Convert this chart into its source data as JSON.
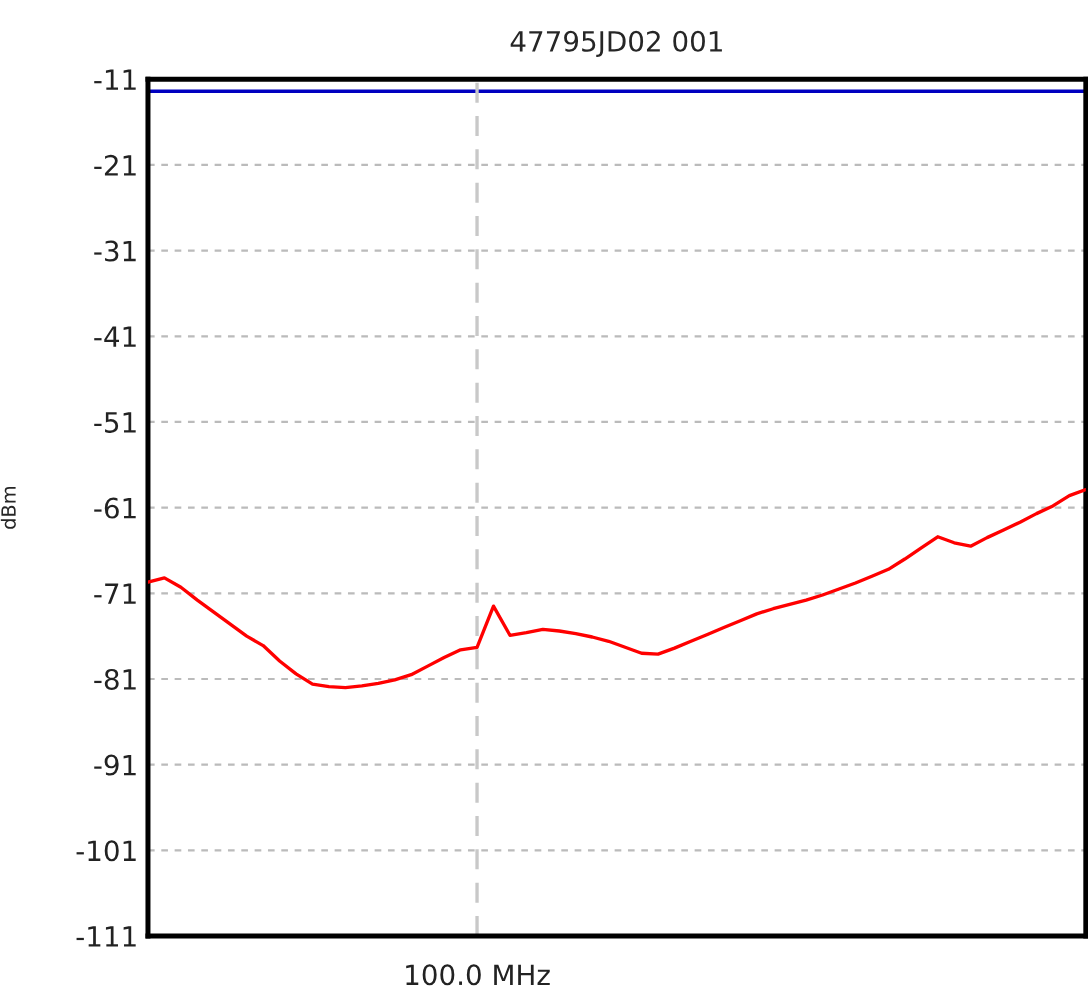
{
  "chart_data": {
    "type": "line",
    "title": "47795JD02 001",
    "ylabel": "dBm",
    "categories": [
      null,
      null,
      null,
      null,
      null,
      null,
      null,
      null,
      null,
      null,
      null,
      null,
      null,
      null,
      null,
      null,
      null,
      null,
      null,
      null,
      "100.0 MHz",
      null,
      null,
      null,
      null,
      null,
      null,
      null,
      null,
      null,
      null,
      null,
      null,
      null,
      null,
      null,
      null,
      null,
      null,
      null,
      null,
      null,
      null,
      null,
      null,
      null,
      null,
      null,
      null,
      null,
      null,
      null,
      null,
      null,
      null,
      null,
      null,
      null
    ],
    "ylim": [
      -111,
      -11
    ],
    "yticks": [
      -111,
      -101,
      -91,
      -81,
      -71,
      -61,
      -51,
      -41,
      -31,
      -21,
      -11
    ],
    "grid": "y",
    "marker": "none",
    "line_style": "solid",
    "ref_lines": [
      {
        "axis": "y",
        "value": -12.4,
        "color": "#0000c0",
        "line_style": "solid"
      },
      {
        "axis": "x",
        "value": "100.0 MHz",
        "color": "#c8c8c8",
        "line_style": "dashed"
      }
    ],
    "series": [
      {
        "color": "#ff0000",
        "values": [
          -69.7,
          -69.2,
          -70.3,
          -71.8,
          -73.2,
          -74.6,
          -76.0,
          -77.1,
          -78.9,
          -80.4,
          -81.6,
          -81.9,
          -82.0,
          -81.8,
          -81.5,
          -81.1,
          -80.5,
          -79.5,
          -78.5,
          -77.6,
          -77.3,
          -72.5,
          -75.9,
          -75.6,
          -75.2,
          -75.4,
          -75.7,
          -76.1,
          -76.6,
          -77.3,
          -78.0,
          -78.1,
          -77.4,
          -76.6,
          -75.8,
          -75.0,
          -74.2,
          -73.4,
          -72.8,
          -72.3,
          -71.8,
          -71.2,
          -70.5,
          -69.8,
          -69.0,
          -68.2,
          -67.0,
          -65.7,
          -64.4,
          -65.1,
          -65.5,
          -64.5,
          -63.6,
          -62.7,
          -61.7,
          -60.8,
          -59.6,
          -58.9
        ]
      }
    ]
  }
}
